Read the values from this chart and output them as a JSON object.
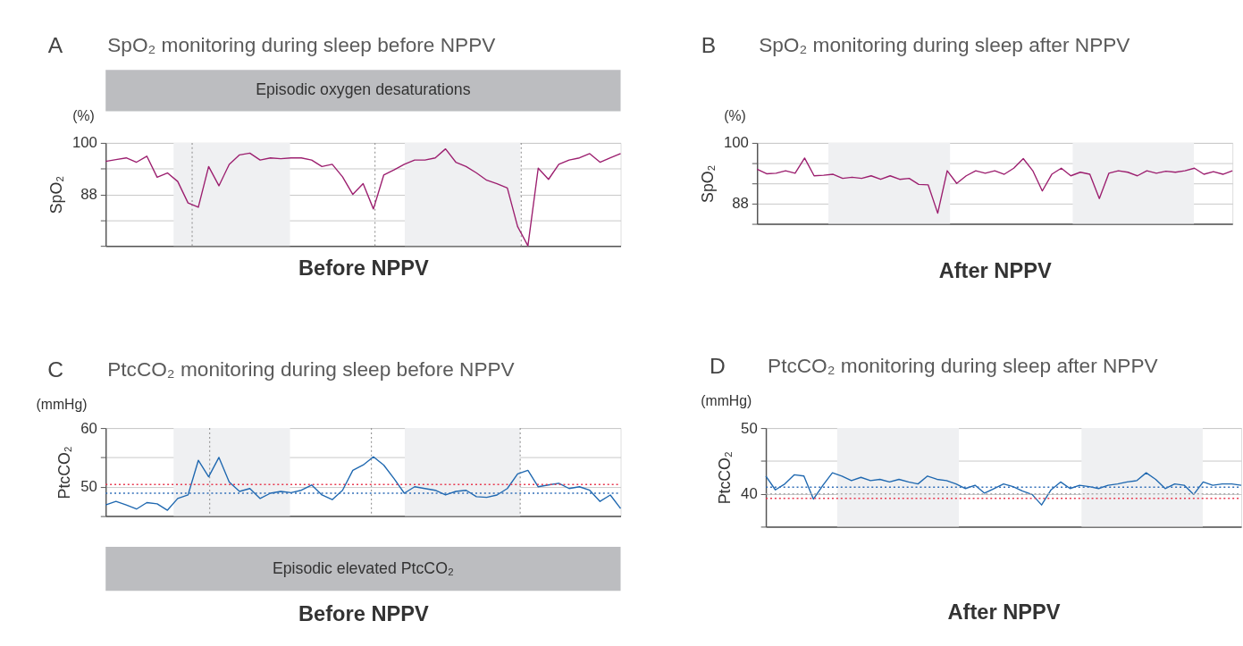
{
  "chart_data": [
    {
      "type": "line",
      "title": "SpO₂ monitoring during sleep before NPPV",
      "xlabel": "Before NPPV",
      "ylabel": "SpO₂",
      "annotations": [
        "A",
        "(%)",
        "Episodic oxygen desaturations"
      ],
      "categories": [
        null,
        null,
        null,
        null,
        null,
        null,
        null,
        null,
        null,
        null,
        null,
        null,
        null,
        null,
        null,
        null,
        null,
        null,
        null,
        null,
        null,
        null,
        null,
        null,
        null,
        null,
        null,
        null,
        null,
        null,
        null,
        null,
        null,
        null,
        null,
        null,
        null,
        null,
        null,
        null,
        null,
        null,
        null,
        null,
        null,
        null,
        null,
        null,
        null,
        null,
        null
      ],
      "series": [
        {
          "color": "#9c1f6f",
          "values": [
            95.7,
            96.1,
            96.5,
            95.5,
            96.9,
            92.0,
            93.0,
            91.0,
            86.0,
            85.0,
            94.5,
            90.0,
            95.0,
            97.2,
            97.6,
            96.0,
            96.5,
            96.3,
            96.5,
            96.5,
            96.0,
            94.5,
            95.0,
            92.1,
            88.0,
            90.5,
            84.6,
            92.5,
            93.7,
            95.0,
            96.0,
            96.0,
            96.5,
            98.6,
            95.5,
            94.5,
            93.0,
            91.3,
            90.5,
            89.5,
            80.5,
            76.0,
            94.1,
            91.5,
            95.0,
            96.0,
            96.5,
            97.5,
            95.5,
            96.5,
            97.5
          ]
        }
      ],
      "ylim": [
        76,
        100
      ],
      "yticks": [
        {
          "value": 76,
          "label": null
        },
        {
          "value": 82,
          "label": null
        },
        88,
        {
          "value": 94,
          "label": null
        },
        100
      ],
      "tick_labels": "y",
      "grid": "y"
    },
    {
      "type": "line",
      "title": "SpO₂ monitoring during sleep after NPPV",
      "xlabel": "After NPPV",
      "ylabel": "SpO₂",
      "annotations": [
        "B",
        "(%)"
      ],
      "categories": [
        null,
        null,
        null,
        null,
        null,
        null,
        null,
        null,
        null,
        null,
        null,
        null,
        null,
        null,
        null,
        null,
        null,
        null,
        null,
        null,
        null,
        null,
        null,
        null,
        null,
        null,
        null,
        null,
        null,
        null,
        null,
        null,
        null,
        null,
        null,
        null,
        null,
        null,
        null,
        null,
        null,
        null,
        null,
        null,
        null,
        null,
        null,
        null,
        null,
        null,
        null
      ],
      "series": [
        {
          "color": "#9c1f6f",
          "values": [
            94.8,
            93.9,
            94.0,
            94.5,
            94.0,
            97.0,
            93.5,
            93.6,
            93.8,
            93.0,
            93.2,
            93.0,
            93.5,
            92.8,
            93.5,
            92.8,
            93.0,
            91.8,
            91.7,
            86.1,
            94.5,
            92.0,
            93.5,
            94.5,
            94.0,
            94.5,
            93.8,
            95.0,
            96.9,
            94.5,
            90.5,
            93.8,
            95.0,
            93.5,
            94.2,
            93.8,
            89.0,
            94.0,
            94.5,
            94.2,
            93.5,
            94.5,
            94.0,
            94.4,
            94.2,
            94.5,
            95.0,
            93.8,
            94.3,
            93.8,
            94.5
          ]
        }
      ],
      "ylim": [
        84,
        100
      ],
      "yticks": [
        {
          "value": 84,
          "label": null
        },
        88,
        {
          "value": 92,
          "label": null
        },
        {
          "value": 96,
          "label": null
        },
        100
      ],
      "tick_labels": "y",
      "grid": "y"
    },
    {
      "type": "line",
      "title": "PtcCO₂ monitoring during sleep before NPPV",
      "xlabel": "Before NPPV",
      "ylabel": "PtcCO₂",
      "annotations": [
        "C",
        "(mmHg)",
        "Episodic elevated PtcCO₂"
      ],
      "categories": [
        null,
        null,
        null,
        null,
        null,
        null,
        null,
        null,
        null,
        null,
        null,
        null,
        null,
        null,
        null,
        null,
        null,
        null,
        null,
        null,
        null,
        null,
        null,
        null,
        null,
        null,
        null,
        null,
        null,
        null,
        null,
        null,
        null,
        null,
        null,
        null,
        null,
        null,
        null,
        null,
        null,
        null,
        null,
        null,
        null,
        null,
        null,
        null,
        null,
        null,
        null
      ],
      "series": [
        {
          "color": "#1f68b0",
          "values": [
            46.9,
            47.5,
            46.9,
            46.2,
            47.3,
            47.1,
            46.0,
            48.0,
            48.6,
            54.5,
            51.7,
            55.0,
            50.8,
            49.2,
            49.7,
            48.0,
            48.9,
            49.2,
            49.0,
            49.4,
            50.3,
            48.6,
            47.8,
            49.4,
            52.8,
            53.7,
            55.1,
            53.7,
            51.4,
            48.9,
            50.0,
            49.7,
            49.4,
            48.6,
            49.2,
            49.4,
            48.3,
            48.2,
            48.6,
            49.7,
            52.2,
            52.8,
            50.0,
            50.3,
            50.6,
            49.7,
            50.0,
            49.4,
            47.5,
            48.6,
            46.3
          ]
        }
      ],
      "ylim": [
        45,
        60
      ],
      "yticks": [
        {
          "value": 45,
          "label": null
        },
        50,
        {
          "value": 55,
          "label": null
        },
        60
      ],
      "tick_labels": "y",
      "grid": "y",
      "ref_lines": [
        {
          "axis": "y",
          "value": 50.4,
          "color": "#e8384f",
          "line_style": "dotted"
        },
        {
          "axis": "y",
          "value": 48.9,
          "color": "#2f6db8",
          "line_style": "dotted"
        }
      ]
    },
    {
      "type": "line",
      "title": "PtcCO₂ monitoring during sleep after NPPV",
      "xlabel": "After NPPV",
      "ylabel": "PtcCO₂",
      "annotations": [
        "D",
        "(mmHg)"
      ],
      "categories": [
        null,
        null,
        null,
        null,
        null,
        null,
        null,
        null,
        null,
        null,
        null,
        null,
        null,
        null,
        null,
        null,
        null,
        null,
        null,
        null,
        null,
        null,
        null,
        null,
        null,
        null,
        null,
        null,
        null,
        null,
        null,
        null,
        null,
        null,
        null,
        null,
        null,
        null,
        null,
        null,
        null,
        null,
        null,
        null,
        null,
        null,
        null,
        null,
        null,
        null,
        null
      ],
      "series": [
        {
          "color": "#1f68b0",
          "values": [
            42.7,
            40.6,
            41.5,
            42.9,
            42.7,
            39.2,
            41.3,
            43.2,
            42.7,
            42.0,
            42.5,
            42.0,
            42.2,
            41.8,
            42.2,
            41.8,
            41.5,
            42.7,
            42.2,
            42.0,
            41.5,
            40.8,
            41.3,
            40.1,
            40.8,
            41.5,
            41.1,
            40.4,
            39.9,
            38.3,
            40.6,
            41.8,
            40.8,
            41.3,
            41.1,
            40.8,
            41.3,
            41.5,
            41.8,
            42.0,
            43.2,
            42.2,
            40.8,
            41.5,
            41.3,
            39.9,
            41.8,
            41.3,
            41.5,
            41.5,
            41.3
          ]
        }
      ],
      "ylim": [
        35,
        50
      ],
      "yticks": [
        {
          "value": 35,
          "label": null
        },
        40,
        {
          "value": 45,
          "label": null
        },
        50
      ],
      "tick_labels": "y",
      "grid": "y",
      "ref_lines": [
        {
          "axis": "y",
          "value": 41.0,
          "color": "#2f6db8",
          "line_style": "dotted"
        },
        {
          "axis": "y",
          "value": 40.0,
          "color": "#aaaaaa",
          "line_style": "dotted"
        },
        {
          "axis": "y",
          "value": 39.3,
          "color": "#e8384f",
          "line_style": "dotted"
        }
      ]
    }
  ]
}
